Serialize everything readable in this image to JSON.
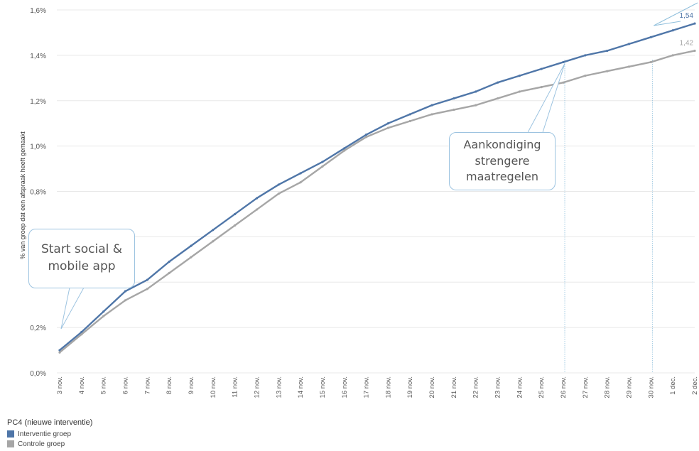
{
  "chart_data": {
    "type": "line",
    "ylabel": "% van groep dat een afspraak heeft gemaakt",
    "xlabel": "",
    "y_ticks": [
      "0,0%",
      "0,2%",
      "",
      "",
      "0,8%",
      "1,0%",
      "1,2%",
      "1,4%",
      "1,6%"
    ],
    "y_tick_values": [
      0,
      0.2,
      0.4,
      0.6,
      0.8,
      1.0,
      1.2,
      1.4,
      1.6
    ],
    "ylim": [
      0,
      1.6
    ],
    "grid": "horizontal",
    "categories": [
      "3 nov.",
      "4 nov.",
      "5 nov.",
      "6 nov.",
      "7 nov.",
      "8 nov.",
      "9 nov.",
      "10 nov.",
      "11 nov.",
      "12 nov.",
      "13 nov.",
      "14 nov.",
      "15 nov.",
      "16 nov.",
      "17 nov.",
      "18 nov.",
      "19 nov.",
      "20 nov.",
      "21 nov.",
      "22 nov.",
      "23 nov.",
      "24 nov.",
      "25 nov.",
      "26 nov.",
      "27 nov.",
      "28 nov.",
      "29 nov.",
      "30 nov.",
      "1 dec.",
      "2 dec."
    ],
    "series": [
      {
        "name": "Interventie groep",
        "color": "#4f76a8",
        "values": [
          0.1,
          0.18,
          0.27,
          0.36,
          0.41,
          0.49,
          0.56,
          0.63,
          0.7,
          0.77,
          0.83,
          0.88,
          0.93,
          0.99,
          1.05,
          1.1,
          1.14,
          1.18,
          1.21,
          1.24,
          1.28,
          1.31,
          1.34,
          1.37,
          1.4,
          1.42,
          1.45,
          1.48,
          1.51,
          1.54
        ],
        "end_label": "1,54"
      },
      {
        "name": "Controle groep",
        "color": "#a6a6a6",
        "values": [
          0.09,
          0.17,
          0.25,
          0.32,
          0.37,
          0.44,
          0.51,
          0.58,
          0.65,
          0.72,
          0.79,
          0.84,
          0.91,
          0.98,
          1.04,
          1.08,
          1.11,
          1.14,
          1.16,
          1.18,
          1.21,
          1.24,
          1.26,
          1.28,
          1.31,
          1.33,
          1.35,
          1.37,
          1.4,
          1.42
        ],
        "end_label": "1,42"
      }
    ],
    "reference_lines": [
      "26 nov.",
      "30 nov."
    ],
    "annotations": [
      {
        "text": "Start social &\nmobile app",
        "anchor": "3 nov."
      },
      {
        "text": "Aankondiging\nstrengere\nmaatregelen",
        "anchor": "26 nov."
      }
    ]
  },
  "legend": {
    "title": "PC4 (nieuwe interventie)",
    "items": [
      {
        "label": "Interventie groep",
        "color": "#4f76a8"
      },
      {
        "label": "Controle groep",
        "color": "#a6a6a6"
      }
    ]
  }
}
